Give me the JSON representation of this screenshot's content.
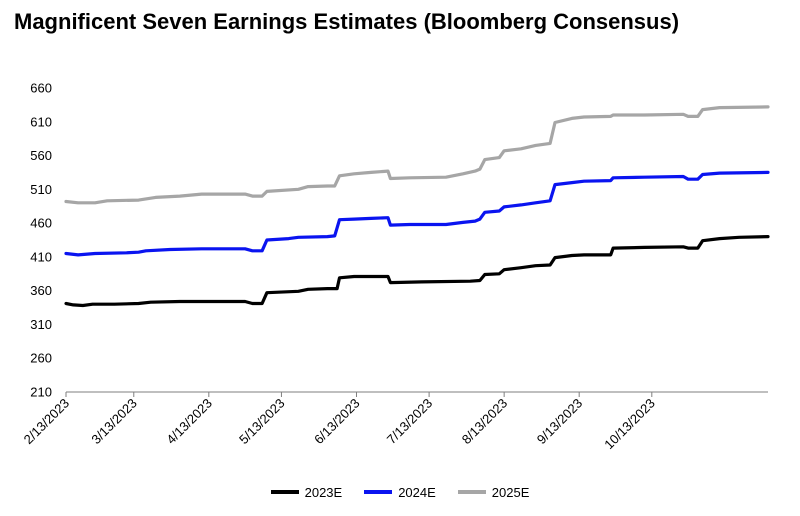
{
  "chart_data": {
    "type": "line",
    "title": "Magnificent Seven Earnings Estimates (Bloomberg Consensus)",
    "xlabel": "",
    "ylabel": "",
    "ylim": [
      210,
      660
    ],
    "yticks": [
      210,
      260,
      310,
      360,
      410,
      460,
      510,
      560,
      610,
      660
    ],
    "xlim": [
      "2023-02-13",
      "2023-11-30"
    ],
    "xticks": [
      "2/13/2023",
      "3/13/2023",
      "4/13/2023",
      "5/13/2023",
      "6/13/2023",
      "7/13/2023",
      "8/13/2023",
      "9/13/2023",
      "10/13/2023"
    ],
    "grid": false,
    "legend_position": "bottom",
    "series": [
      {
        "name": "2023E",
        "color": "#000000",
        "points": [
          [
            "2023-02-13",
            341
          ],
          [
            "2023-02-16",
            339
          ],
          [
            "2023-02-20",
            338
          ],
          [
            "2023-02-24",
            340
          ],
          [
            "2023-03-05",
            340
          ],
          [
            "2023-03-15",
            341
          ],
          [
            "2023-03-20",
            343
          ],
          [
            "2023-04-01",
            344
          ],
          [
            "2023-04-15",
            344
          ],
          [
            "2023-04-28",
            344
          ],
          [
            "2023-05-01",
            341
          ],
          [
            "2023-05-05",
            341
          ],
          [
            "2023-05-07",
            357
          ],
          [
            "2023-05-20",
            359
          ],
          [
            "2023-05-24",
            362
          ],
          [
            "2023-06-01",
            363
          ],
          [
            "2023-06-05",
            363
          ],
          [
            "2023-06-06",
            379
          ],
          [
            "2023-06-12",
            381
          ],
          [
            "2023-06-26",
            381
          ],
          [
            "2023-06-27",
            372
          ],
          [
            "2023-07-10",
            373
          ],
          [
            "2023-07-30",
            374
          ],
          [
            "2023-08-03",
            375
          ],
          [
            "2023-08-05",
            384
          ],
          [
            "2023-08-11",
            385
          ],
          [
            "2023-08-13",
            391
          ],
          [
            "2023-08-20",
            394
          ],
          [
            "2023-08-26",
            397
          ],
          [
            "2023-09-01",
            398
          ],
          [
            "2023-09-03",
            409
          ],
          [
            "2023-09-10",
            412
          ],
          [
            "2023-09-15",
            413
          ],
          [
            "2023-09-26",
            413
          ],
          [
            "2023-09-27",
            423
          ],
          [
            "2023-10-10",
            424
          ],
          [
            "2023-10-26",
            425
          ],
          [
            "2023-10-28",
            423
          ],
          [
            "2023-11-01",
            423
          ],
          [
            "2023-11-03",
            434
          ],
          [
            "2023-11-10",
            437
          ],
          [
            "2023-11-18",
            439
          ],
          [
            "2023-11-30",
            440
          ]
        ]
      },
      {
        "name": "2024E",
        "color": "#0a14f0",
        "points": [
          [
            "2023-02-13",
            415
          ],
          [
            "2023-02-18",
            413
          ],
          [
            "2023-02-25",
            415
          ],
          [
            "2023-03-10",
            416
          ],
          [
            "2023-03-15",
            417
          ],
          [
            "2023-03-18",
            419
          ],
          [
            "2023-03-28",
            421
          ],
          [
            "2023-04-10",
            422
          ],
          [
            "2023-04-28",
            422
          ],
          [
            "2023-05-01",
            419
          ],
          [
            "2023-05-05",
            419
          ],
          [
            "2023-05-07",
            435
          ],
          [
            "2023-05-16",
            437
          ],
          [
            "2023-05-20",
            439
          ],
          [
            "2023-06-01",
            440
          ],
          [
            "2023-06-04",
            441
          ],
          [
            "2023-06-06",
            465
          ],
          [
            "2023-06-12",
            466
          ],
          [
            "2023-06-19",
            467
          ],
          [
            "2023-06-26",
            468
          ],
          [
            "2023-06-27",
            457
          ],
          [
            "2023-07-05",
            458
          ],
          [
            "2023-07-20",
            458
          ],
          [
            "2023-07-27",
            461
          ],
          [
            "2023-08-01",
            463
          ],
          [
            "2023-08-03",
            466
          ],
          [
            "2023-08-05",
            476
          ],
          [
            "2023-08-11",
            478
          ],
          [
            "2023-08-13",
            484
          ],
          [
            "2023-08-20",
            487
          ],
          [
            "2023-08-26",
            490
          ],
          [
            "2023-09-01",
            493
          ],
          [
            "2023-09-03",
            517
          ],
          [
            "2023-09-10",
            520
          ],
          [
            "2023-09-15",
            522
          ],
          [
            "2023-09-26",
            523
          ],
          [
            "2023-09-27",
            527
          ],
          [
            "2023-10-10",
            528
          ],
          [
            "2023-10-26",
            529
          ],
          [
            "2023-10-28",
            525
          ],
          [
            "2023-11-01",
            525
          ],
          [
            "2023-11-03",
            532
          ],
          [
            "2023-11-10",
            534
          ],
          [
            "2023-11-30",
            535
          ]
        ]
      },
      {
        "name": "2025E",
        "color": "#a6a6a6",
        "points": [
          [
            "2023-02-13",
            492
          ],
          [
            "2023-02-18",
            490
          ],
          [
            "2023-02-25",
            490
          ],
          [
            "2023-03-02",
            493
          ],
          [
            "2023-03-15",
            494
          ],
          [
            "2023-03-22",
            498
          ],
          [
            "2023-04-01",
            500
          ],
          [
            "2023-04-10",
            503
          ],
          [
            "2023-04-28",
            503
          ],
          [
            "2023-05-01",
            500
          ],
          [
            "2023-05-05",
            500
          ],
          [
            "2023-05-07",
            507
          ],
          [
            "2023-05-20",
            510
          ],
          [
            "2023-05-24",
            514
          ],
          [
            "2023-06-01",
            515
          ],
          [
            "2023-06-04",
            515
          ],
          [
            "2023-06-06",
            530
          ],
          [
            "2023-06-12",
            533
          ],
          [
            "2023-06-19",
            535
          ],
          [
            "2023-06-26",
            537
          ],
          [
            "2023-06-27",
            526
          ],
          [
            "2023-07-05",
            527
          ],
          [
            "2023-07-20",
            528
          ],
          [
            "2023-07-27",
            533
          ],
          [
            "2023-08-01",
            537
          ],
          [
            "2023-08-03",
            540
          ],
          [
            "2023-08-05",
            554
          ],
          [
            "2023-08-11",
            557
          ],
          [
            "2023-08-13",
            567
          ],
          [
            "2023-08-20",
            570
          ],
          [
            "2023-08-26",
            575
          ],
          [
            "2023-09-01",
            578
          ],
          [
            "2023-09-03",
            609
          ],
          [
            "2023-09-10",
            615
          ],
          [
            "2023-09-15",
            617
          ],
          [
            "2023-09-26",
            618
          ],
          [
            "2023-09-27",
            620
          ],
          [
            "2023-10-10",
            620
          ],
          [
            "2023-10-26",
            621
          ],
          [
            "2023-10-28",
            618
          ],
          [
            "2023-11-01",
            618
          ],
          [
            "2023-11-03",
            628
          ],
          [
            "2023-11-10",
            631
          ],
          [
            "2023-11-30",
            632
          ]
        ]
      }
    ]
  }
}
